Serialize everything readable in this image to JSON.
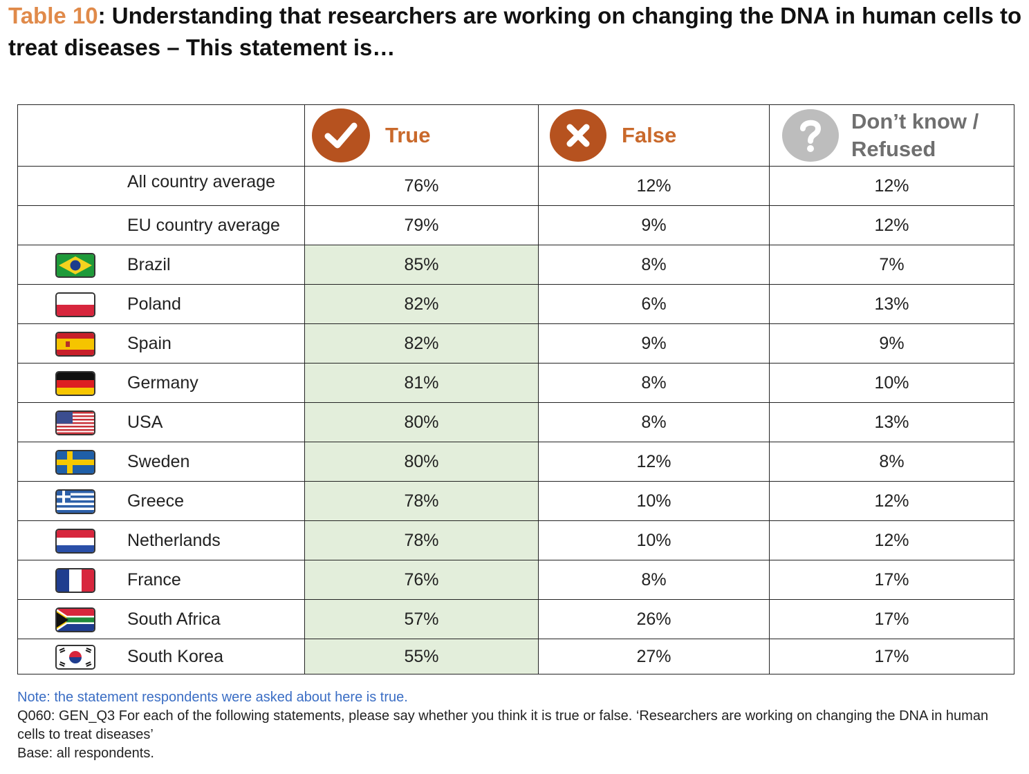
{
  "title": {
    "number": "Table 10",
    "text": ": Understanding that researchers are working on changing the DNA in human cells to treat diseases – This statement is…"
  },
  "columns": [
    {
      "label": "True",
      "icon": "checkmark-icon"
    },
    {
      "label": "False",
      "icon": "x-icon"
    },
    {
      "label": "Don’t know / Refused",
      "icon": "question-icon"
    }
  ],
  "rows": [
    {
      "name": "All country average",
      "true": "76%",
      "false": "12%",
      "dk": "12%"
    },
    {
      "name": "EU country average",
      "true": "79%",
      "false": "9%",
      "dk": "12%"
    },
    {
      "name": "Brazil",
      "flag": "brazil-flag-icon",
      "true": "85%",
      "false": "8%",
      "dk": "7%"
    },
    {
      "name": "Poland",
      "flag": "poland-flag-icon",
      "true": "82%",
      "false": "6%",
      "dk": "13%"
    },
    {
      "name": "Spain",
      "flag": "spain-flag-icon",
      "true": "82%",
      "false": "9%",
      "dk": "9%"
    },
    {
      "name": "Germany",
      "flag": "germany-flag-icon",
      "true": "81%",
      "false": "8%",
      "dk": "10%"
    },
    {
      "name": "USA",
      "flag": "usa-flag-icon",
      "true": "80%",
      "false": "8%",
      "dk": "13%"
    },
    {
      "name": "Sweden",
      "flag": "sweden-flag-icon",
      "true": "80%",
      "false": "12%",
      "dk": "8%"
    },
    {
      "name": "Greece",
      "flag": "greece-flag-icon",
      "true": "78%",
      "false": "10%",
      "dk": "12%"
    },
    {
      "name": "Netherlands",
      "flag": "netherlands-flag-icon",
      "true": "78%",
      "false": "10%",
      "dk": "12%"
    },
    {
      "name": "France",
      "flag": "france-flag-icon",
      "true": "76%",
      "false": "8%",
      "dk": "17%"
    },
    {
      "name": "South Africa",
      "flag": "south-africa-flag-icon",
      "true": "57%",
      "false": "26%",
      "dk": "17%"
    },
    {
      "name": "South Korea",
      "flag": "south-korea-flag-icon",
      "true": "55%",
      "false": "27%",
      "dk": "17%"
    }
  ],
  "colors": {
    "title_number": "#e08a4a",
    "header_orange": "#c9692b",
    "icon_orange": "#b6521f",
    "icon_grey": "#bdbdbd",
    "true_highlight": "#e3eedb",
    "note_blue": "#3a6dc4"
  },
  "notes": {
    "note": "Note: the statement respondents were asked about here is true.",
    "question": "Q060: GEN_Q3 For each of the following statements, please say whether you think it is true or false. ‘Researchers are working on changing the DNA in human cells to treat diseases’",
    "base": "Base: all respondents."
  }
}
